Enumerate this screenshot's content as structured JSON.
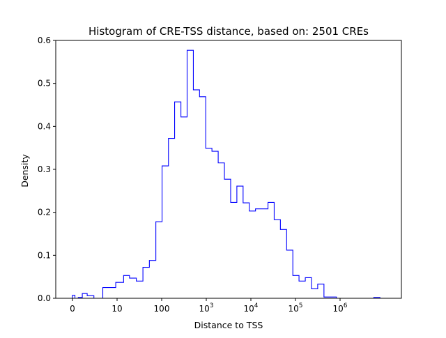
{
  "chart_data": {
    "type": "histogram",
    "title": "Histogram of CRE-TSS distance, based on: 2501 CREs",
    "xlabel": "Distance to TSS",
    "ylabel": "Density",
    "x_scale": "symlog",
    "ylim": [
      0,
      0.6
    ],
    "x_ticks": [
      {
        "value": 0,
        "label": "0"
      },
      {
        "value": 10,
        "label": "10"
      },
      {
        "value": 100,
        "label": "100"
      },
      {
        "value": 1000,
        "base": "10",
        "exp": "3"
      },
      {
        "value": 10000,
        "base": "10",
        "exp": "4"
      },
      {
        "value": 100000,
        "base": "10",
        "exp": "5"
      },
      {
        "value": 1000000,
        "base": "10",
        "exp": "6"
      }
    ],
    "y_ticks": [
      {
        "value": 0.0,
        "label": "0.0"
      },
      {
        "value": 0.1,
        "label": "0.1"
      },
      {
        "value": 0.2,
        "label": "0.2"
      },
      {
        "value": 0.3,
        "label": "0.3"
      },
      {
        "value": 0.4,
        "label": "0.4"
      },
      {
        "value": 0.5,
        "label": "0.5"
      },
      {
        "value": 0.6,
        "label": "0.6"
      }
    ],
    "grid": false,
    "legend": "none",
    "color": "#0000ff",
    "bin_edges": [
      0,
      0.55,
      1.3,
      2.2,
      3.3,
      4.8,
      6.8,
      9.7,
      14,
      19,
      27,
      38,
      53,
      74,
      102,
      142,
      195,
      270,
      372,
      513,
      706,
      973,
      1340,
      1850,
      2550,
      3520,
      4850,
      6690,
      9220,
      12700,
      17500,
      24200,
      33300,
      45900,
      63300,
      87300,
      120000,
      166000,
      229000,
      315000,
      435000,
      600000,
      828000,
      1140000,
      1570000,
      2170000,
      2990000,
      4120000,
      5690000,
      7840000,
      10800000
    ],
    "densities": [
      0.007,
      0.0,
      0.002,
      0.011,
      0.006,
      0.0,
      0.025,
      0.037,
      0.053,
      0.047,
      0.04,
      0.072,
      0.088,
      0.178,
      0.308,
      0.372,
      0.457,
      0.422,
      0.577,
      0.485,
      0.469,
      0.349,
      0.342,
      0.315,
      0.277,
      0.223,
      0.261,
      0.222,
      0.203,
      0.208,
      0.208,
      0.223,
      0.183,
      0.16,
      0.112,
      0.053,
      0.04,
      0.048,
      0.022,
      0.033,
      0.003,
      0.003,
      0.0,
      0.0,
      0.0,
      0.0,
      0.0,
      0.0,
      0.002,
      0.0
    ]
  }
}
